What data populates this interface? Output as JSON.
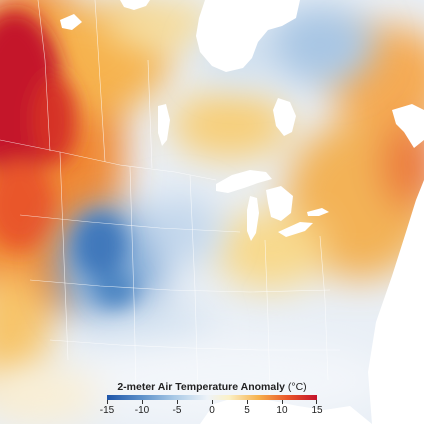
{
  "legend": {
    "title": "2-meter Air Temperature Anomaly",
    "unit": "(°C)",
    "tick_labels": [
      "-15",
      "-10",
      "-5",
      "0",
      "5",
      "10",
      "15"
    ],
    "colors": [
      "#1f55a8",
      "#5b8fc9",
      "#a9c9e6",
      "#eef3f8",
      "#fbf1c8",
      "#f6b24e",
      "#e9562a",
      "#c4122b"
    ]
  },
  "map": {
    "anomaly_scale_min": -15,
    "anomaly_scale_max": 15,
    "water_color": "#ffffff",
    "boundary_color": "#ffffff"
  }
}
